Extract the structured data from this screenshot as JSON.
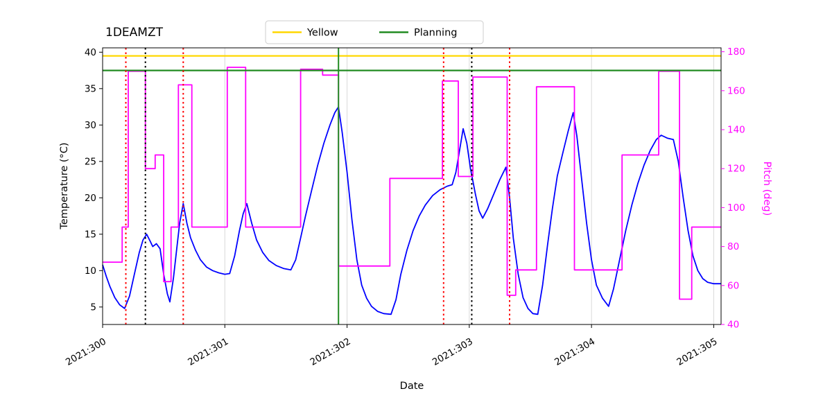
{
  "chart_data": {
    "type": "line",
    "title": "1DEAMZT",
    "xlabel": "Date",
    "ylabel_left": "Temperature (°C)",
    "ylabel_right": "Pitch (deg)",
    "x_range": [
      300,
      305.06
    ],
    "x_ticks": [
      {
        "label": "2021:300",
        "value": 300
      },
      {
        "label": "2021:301",
        "value": 301
      },
      {
        "label": "2021:302",
        "value": 302
      },
      {
        "label": "2021:303",
        "value": 303
      },
      {
        "label": "2021:304",
        "value": 304
      },
      {
        "label": "2021:305",
        "value": 305
      }
    ],
    "y_left_range": [
      2.6,
      40.6
    ],
    "y_left_ticks": [
      5,
      10,
      15,
      20,
      25,
      30,
      35,
      40
    ],
    "y_right_range": [
      40,
      182
    ],
    "y_right_ticks": [
      40,
      60,
      80,
      100,
      120,
      140,
      160,
      180
    ],
    "grid": {
      "axis": "x",
      "color": "#d9d9d9"
    },
    "axis_colors": {
      "left": "#000000",
      "right": "#ff00ff"
    },
    "legend": [
      {
        "label": "Yellow",
        "color": "#ffd700"
      },
      {
        "label": "Planning",
        "color": "#228b22"
      }
    ],
    "hlines": [
      {
        "name": "yellow-limit-line",
        "label": "Yellow",
        "value": 39.5,
        "color": "#ffd700"
      },
      {
        "name": "planning-limit-line",
        "label": "Planning",
        "value": 37.5,
        "color": "#228b22"
      }
    ],
    "vlines": [
      {
        "name": "vline-red-dotted-1",
        "value": 300.19,
        "color": "#ff0000",
        "style": "dotted"
      },
      {
        "name": "vline-black-dotted-1",
        "value": 300.35,
        "color": "#000000",
        "style": "dotted"
      },
      {
        "name": "vline-red-dotted-2",
        "value": 300.66,
        "color": "#ff0000",
        "style": "dotted"
      },
      {
        "name": "vline-green-solid",
        "value": 301.93,
        "color": "#228b22",
        "style": "solid"
      },
      {
        "name": "vline-red-dotted-3",
        "value": 302.79,
        "color": "#ff0000",
        "style": "dotted"
      },
      {
        "name": "vline-black-dotted-2",
        "value": 303.02,
        "color": "#000000",
        "style": "dotted"
      },
      {
        "name": "vline-red-dotted-4",
        "value": 303.33,
        "color": "#ff0000",
        "style": "dotted"
      }
    ],
    "series": [
      {
        "name": "temperature-1deamzt",
        "axis": "left",
        "color": "#0000ff",
        "style": "line",
        "points": [
          [
            300.0,
            10.8
          ],
          [
            300.03,
            9.2
          ],
          [
            300.06,
            7.8
          ],
          [
            300.1,
            6.3
          ],
          [
            300.14,
            5.3
          ],
          [
            300.18,
            4.8
          ],
          [
            300.22,
            6.5
          ],
          [
            300.26,
            9.5
          ],
          [
            300.3,
            12.5
          ],
          [
            300.33,
            14.2
          ],
          [
            300.36,
            15.0
          ],
          [
            300.39,
            14.0
          ],
          [
            300.41,
            13.3
          ],
          [
            300.44,
            13.7
          ],
          [
            300.47,
            13.0
          ],
          [
            300.5,
            9.5
          ],
          [
            300.53,
            6.8
          ],
          [
            300.55,
            5.7
          ],
          [
            300.58,
            9.0
          ],
          [
            300.61,
            13.5
          ],
          [
            300.63,
            16.5
          ],
          [
            300.66,
            19.2
          ],
          [
            300.69,
            16.5
          ],
          [
            300.72,
            14.5
          ],
          [
            300.76,
            12.8
          ],
          [
            300.8,
            11.5
          ],
          [
            300.85,
            10.5
          ],
          [
            300.9,
            10.0
          ],
          [
            300.95,
            9.7
          ],
          [
            301.0,
            9.5
          ],
          [
            301.04,
            9.6
          ],
          [
            301.08,
            12.0
          ],
          [
            301.12,
            15.5
          ],
          [
            301.15,
            17.8
          ],
          [
            301.18,
            19.2
          ],
          [
            301.22,
            16.5
          ],
          [
            301.26,
            14.2
          ],
          [
            301.31,
            12.5
          ],
          [
            301.36,
            11.4
          ],
          [
            301.42,
            10.7
          ],
          [
            301.48,
            10.3
          ],
          [
            301.54,
            10.1
          ],
          [
            301.58,
            11.5
          ],
          [
            301.62,
            14.5
          ],
          [
            301.66,
            17.5
          ],
          [
            301.71,
            21.0
          ],
          [
            301.76,
            24.5
          ],
          [
            301.81,
            27.5
          ],
          [
            301.86,
            30.0
          ],
          [
            301.9,
            31.7
          ],
          [
            301.93,
            32.5
          ],
          [
            301.96,
            29.0
          ],
          [
            302.0,
            23.5
          ],
          [
            302.04,
            17.0
          ],
          [
            302.08,
            11.5
          ],
          [
            302.12,
            8.0
          ],
          [
            302.16,
            6.2
          ],
          [
            302.2,
            5.1
          ],
          [
            302.25,
            4.4
          ],
          [
            302.3,
            4.1
          ],
          [
            302.36,
            4.0
          ],
          [
            302.4,
            6.0
          ],
          [
            302.44,
            9.5
          ],
          [
            302.49,
            12.8
          ],
          [
            302.54,
            15.5
          ],
          [
            302.59,
            17.5
          ],
          [
            302.64,
            19.0
          ],
          [
            302.7,
            20.3
          ],
          [
            302.76,
            21.1
          ],
          [
            302.82,
            21.6
          ],
          [
            302.86,
            21.8
          ],
          [
            302.89,
            23.5
          ],
          [
            302.92,
            26.5
          ],
          [
            302.95,
            29.5
          ],
          [
            302.98,
            27.5
          ],
          [
            303.01,
            24.0
          ],
          [
            303.05,
            20.5
          ],
          [
            303.08,
            18.2
          ],
          [
            303.11,
            17.2
          ],
          [
            303.15,
            18.5
          ],
          [
            303.2,
            20.5
          ],
          [
            303.25,
            22.5
          ],
          [
            303.3,
            24.2
          ],
          [
            303.33,
            20.0
          ],
          [
            303.36,
            14.5
          ],
          [
            303.4,
            9.5
          ],
          [
            303.44,
            6.3
          ],
          [
            303.48,
            4.8
          ],
          [
            303.52,
            4.1
          ],
          [
            303.56,
            4.0
          ],
          [
            303.6,
            8.0
          ],
          [
            303.64,
            13.5
          ],
          [
            303.68,
            18.5
          ],
          [
            303.72,
            23.0
          ],
          [
            303.77,
            26.5
          ],
          [
            303.81,
            29.2
          ],
          [
            303.85,
            31.7
          ],
          [
            303.88,
            28.5
          ],
          [
            303.92,
            22.5
          ],
          [
            303.96,
            16.5
          ],
          [
            304.0,
            11.5
          ],
          [
            304.04,
            8.0
          ],
          [
            304.09,
            6.2
          ],
          [
            304.14,
            5.1
          ],
          [
            304.18,
            7.5
          ],
          [
            304.23,
            11.5
          ],
          [
            304.28,
            15.5
          ],
          [
            304.33,
            19.0
          ],
          [
            304.38,
            22.0
          ],
          [
            304.43,
            24.5
          ],
          [
            304.48,
            26.5
          ],
          [
            304.53,
            28.0
          ],
          [
            304.57,
            28.6
          ],
          [
            304.62,
            28.2
          ],
          [
            304.67,
            28.0
          ],
          [
            304.71,
            25.0
          ],
          [
            304.75,
            20.0
          ],
          [
            304.79,
            15.5
          ],
          [
            304.83,
            12.0
          ],
          [
            304.87,
            10.0
          ],
          [
            304.91,
            8.9
          ],
          [
            304.95,
            8.4
          ],
          [
            305.0,
            8.2
          ],
          [
            305.06,
            8.2
          ]
        ]
      },
      {
        "name": "pitch",
        "axis": "right",
        "color": "#ff00ff",
        "style": "step",
        "points": [
          [
            300.0,
            72
          ],
          [
            300.16,
            90
          ],
          [
            300.21,
            170
          ],
          [
            300.35,
            120
          ],
          [
            300.43,
            127
          ],
          [
            300.5,
            62
          ],
          [
            300.56,
            90
          ],
          [
            300.62,
            163
          ],
          [
            300.73,
            90
          ],
          [
            301.02,
            172
          ],
          [
            301.17,
            90
          ],
          [
            301.62,
            171
          ],
          [
            301.8,
            168
          ],
          [
            301.93,
            70
          ],
          [
            302.35,
            115
          ],
          [
            302.78,
            165
          ],
          [
            302.91,
            116
          ],
          [
            303.03,
            167
          ],
          [
            303.31,
            55
          ],
          [
            303.38,
            68
          ],
          [
            303.55,
            162
          ],
          [
            303.86,
            68
          ],
          [
            304.25,
            127
          ],
          [
            304.55,
            170
          ],
          [
            304.72,
            53
          ],
          [
            304.82,
            90
          ],
          [
            305.06,
            90
          ]
        ]
      }
    ]
  }
}
